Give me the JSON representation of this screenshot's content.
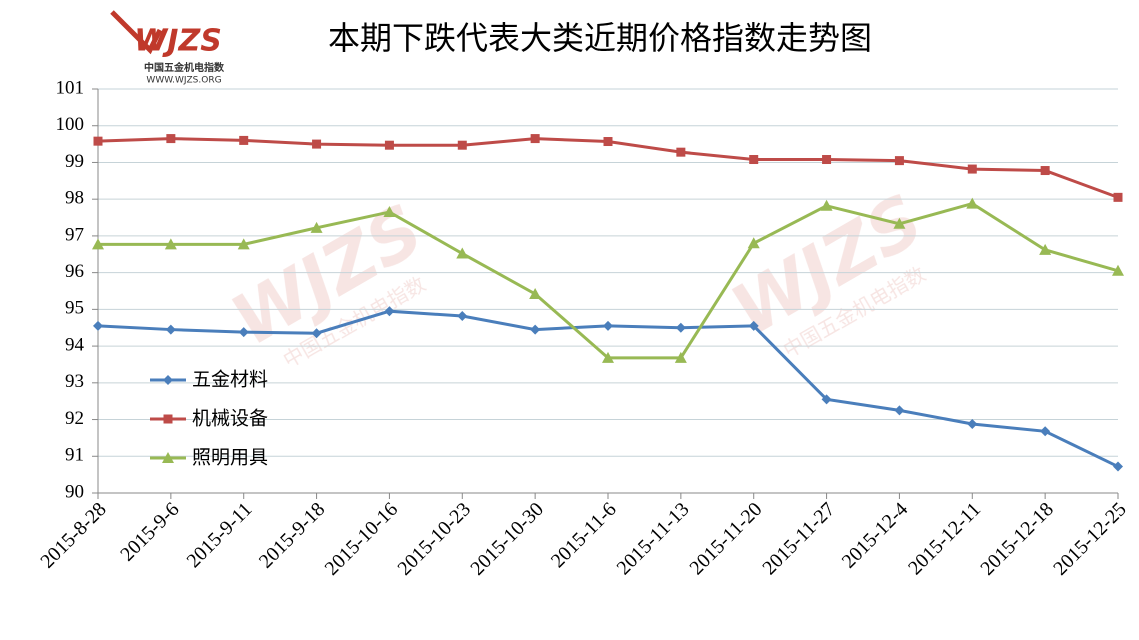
{
  "chart_data": {
    "type": "line",
    "title": "本期下跌代表大类近期价格指数走势图",
    "logo": {
      "mark": "WJZS",
      "name": "中国五金机电指数",
      "url": "WWW.WJZS.ORG"
    },
    "categories": [
      "2015-8-28",
      "2015-9-6",
      "2015-9-11",
      "2015-9-18",
      "2015-10-16",
      "2015-10-23",
      "2015-10-30",
      "2015-11-6",
      "2015-11-13",
      "2015-11-20",
      "2015-11-27",
      "2015-12-4",
      "2015-12-11",
      "2015-12-18",
      "2015-12-25"
    ],
    "series": [
      {
        "name": "五金材料",
        "color": "#4a7ebb",
        "marker": "diamond",
        "values": [
          94.55,
          94.45,
          94.38,
          94.35,
          94.95,
          94.82,
          94.45,
          94.55,
          94.5,
          94.55,
          92.55,
          92.25,
          91.88,
          91.68,
          90.72
        ]
      },
      {
        "name": "机械设备",
        "color": "#be4b48",
        "marker": "square",
        "values": [
          99.58,
          99.65,
          99.6,
          99.5,
          99.47,
          99.47,
          99.65,
          99.57,
          99.28,
          99.08,
          99.08,
          99.05,
          98.82,
          98.78,
          98.05
        ]
      },
      {
        "name": "照明用具",
        "color": "#98b954",
        "marker": "triangle",
        "values": [
          96.77,
          96.77,
          96.77,
          97.22,
          97.65,
          96.52,
          95.42,
          93.68,
          93.68,
          96.8,
          97.82,
          97.33,
          97.88,
          96.62,
          96.05
        ]
      }
    ],
    "ylim": [
      90,
      101
    ],
    "yticks": [
      90,
      91,
      92,
      93,
      94,
      95,
      96,
      97,
      98,
      99,
      100,
      101
    ],
    "grid": true,
    "legend": "left"
  }
}
